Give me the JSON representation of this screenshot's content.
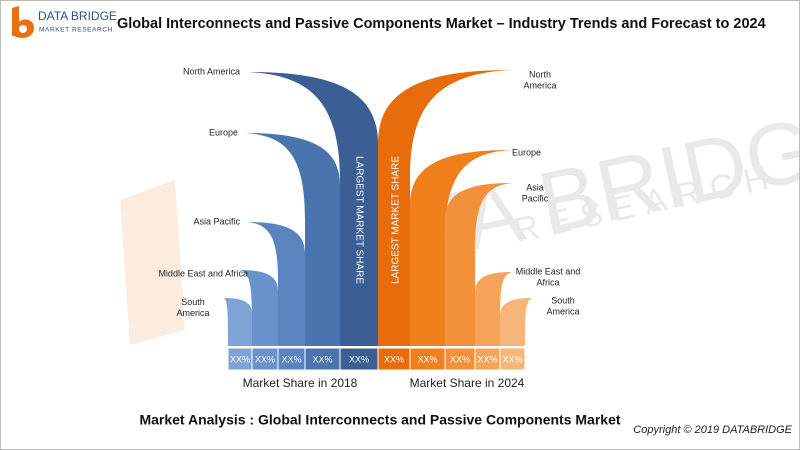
{
  "header": {
    "logo_name": "DATA BRIDGE",
    "logo_tagline": "MARKET RESEARCH",
    "title": "Global Interconnects and Passive Components Market – Industry Trends and Forecast to 2024"
  },
  "watermark": {
    "name": "DATA BRIDGE",
    "tagline": "RESEARCH"
  },
  "left_regions": [
    "South America",
    "Middle East and Africa",
    "Asia Pacific",
    "Europe",
    "North America"
  ],
  "right_regions": [
    [
      "North",
      "America"
    ],
    [
      "Europe"
    ],
    [
      "Asia",
      "Pacific"
    ],
    [
      "Middle East and",
      "Africa"
    ],
    [
      "South",
      "America"
    ]
  ],
  "left_callout": "LARGEST MARKET SHARE",
  "right_callout": "LARGEST MARKET SHARE",
  "shares_2018": [
    "XX%",
    "XX%",
    "XX%",
    "XX%",
    "XX%"
  ],
  "shares_2024": [
    "XX%",
    "XX%",
    "XX%",
    "XX%",
    "XX%"
  ],
  "caption_2018": "Market Share in 2018",
  "caption_2024": "Market Share in 2024",
  "footer": {
    "title": "Market Analysis : Global Interconnects and Passive Components Market",
    "copyright": "Copyright © 2019 DATABRIDGE"
  }
}
